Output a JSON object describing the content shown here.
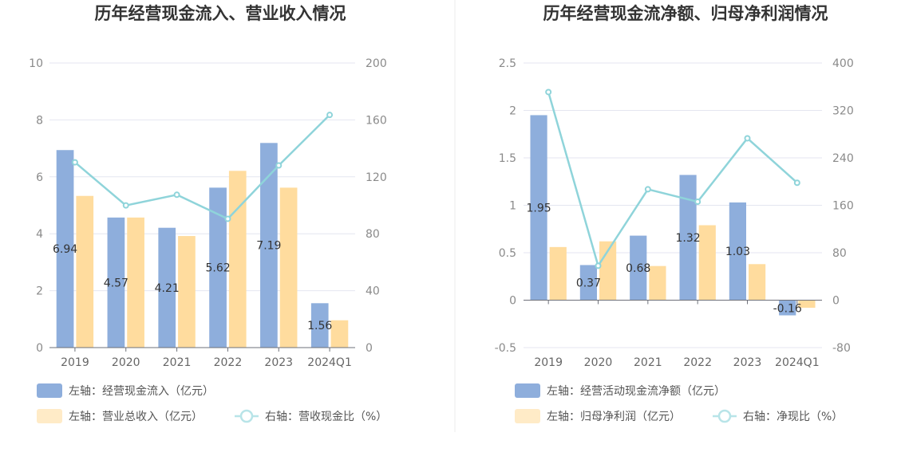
{
  "colors": {
    "bar_primary": "#8eaedc",
    "bar_secondary": "#ffdc9e",
    "bar_secondary_legend": "#ffebc7",
    "line": "#8fd4da",
    "grid": "#e4e6f0",
    "divider": "#ebebeb"
  },
  "chart_data": [
    {
      "type": "bar",
      "title": "历年经营现金流入、营业收入情况",
      "categories": [
        "2019",
        "2020",
        "2021",
        "2022",
        "2023",
        "2024Q1"
      ],
      "y_left": {
        "range": [
          0,
          10
        ],
        "ticks": [
          "0",
          "2",
          "4",
          "6",
          "8",
          "10"
        ]
      },
      "y_right": {
        "range": [
          0,
          200
        ],
        "ticks": [
          "0",
          "40",
          "80",
          "120",
          "160",
          "200"
        ]
      },
      "series": [
        {
          "name": "左轴：经营现金流入（亿元）",
          "kind": "bar",
          "axis": "left",
          "values": [
            6.94,
            4.57,
            4.21,
            5.62,
            7.19,
            1.56
          ],
          "labels": [
            "6.94",
            "4.57",
            "4.21",
            "5.62",
            "7.19",
            "1.56"
          ]
        },
        {
          "name": "左轴：营业总收入（亿元）",
          "kind": "bar",
          "axis": "left",
          "values": [
            5.33,
            4.57,
            3.92,
            6.21,
            5.62,
            0.96
          ]
        },
        {
          "name": "右轴：营收现金比（%）",
          "kind": "line",
          "axis": "right",
          "values": [
            130.2,
            99.9,
            107.4,
            90.5,
            128.0,
            163.5
          ]
        }
      ],
      "legend": [
        {
          "label": "左轴：经营现金流入（亿元）",
          "type": "bar-primary"
        },
        {
          "label": "左轴：营业总收入（亿元）",
          "type": "bar-secondary"
        },
        {
          "label": "右轴：营收现金比（%）",
          "type": "line"
        }
      ],
      "grid": true,
      "legend_position": "bottom"
    },
    {
      "type": "bar",
      "title": "历年经营现金流净额、归母净利润情况",
      "categories": [
        "2019",
        "2020",
        "2021",
        "2022",
        "2023",
        "2024Q1"
      ],
      "y_left": {
        "range": [
          -0.5,
          2.5
        ],
        "ticks": [
          "-0.5",
          "0",
          "0.5",
          "1",
          "1.5",
          "2",
          "2.5"
        ]
      },
      "y_right": {
        "range": [
          -80,
          400
        ],
        "ticks": [
          "-80",
          "0",
          "80",
          "160",
          "240",
          "320",
          "400"
        ]
      },
      "series": [
        {
          "name": "左轴：经营活动现金流净额（亿元）",
          "kind": "bar",
          "axis": "left",
          "values": [
            1.95,
            0.37,
            0.68,
            1.32,
            1.03,
            -0.16
          ],
          "labels": [
            "1.95",
            "0.37",
            "0.68",
            "1.32",
            "1.03",
            "-0.16"
          ]
        },
        {
          "name": "左轴：归母净利润（亿元）",
          "kind": "bar",
          "axis": "left",
          "values": [
            0.56,
            0.62,
            0.36,
            0.79,
            0.38,
            -0.08
          ]
        },
        {
          "name": "右轴：净现比（%）",
          "kind": "line",
          "axis": "right",
          "values": [
            351,
            58,
            187,
            166,
            273,
            198
          ]
        }
      ],
      "legend": [
        {
          "label": "左轴：经营活动现金流净额（亿元）",
          "type": "bar-primary"
        },
        {
          "label": "左轴：归母净利润（亿元）",
          "type": "bar-secondary"
        },
        {
          "label": "右轴：净现比（%）",
          "type": "line"
        }
      ],
      "grid": true,
      "legend_position": "bottom"
    }
  ]
}
